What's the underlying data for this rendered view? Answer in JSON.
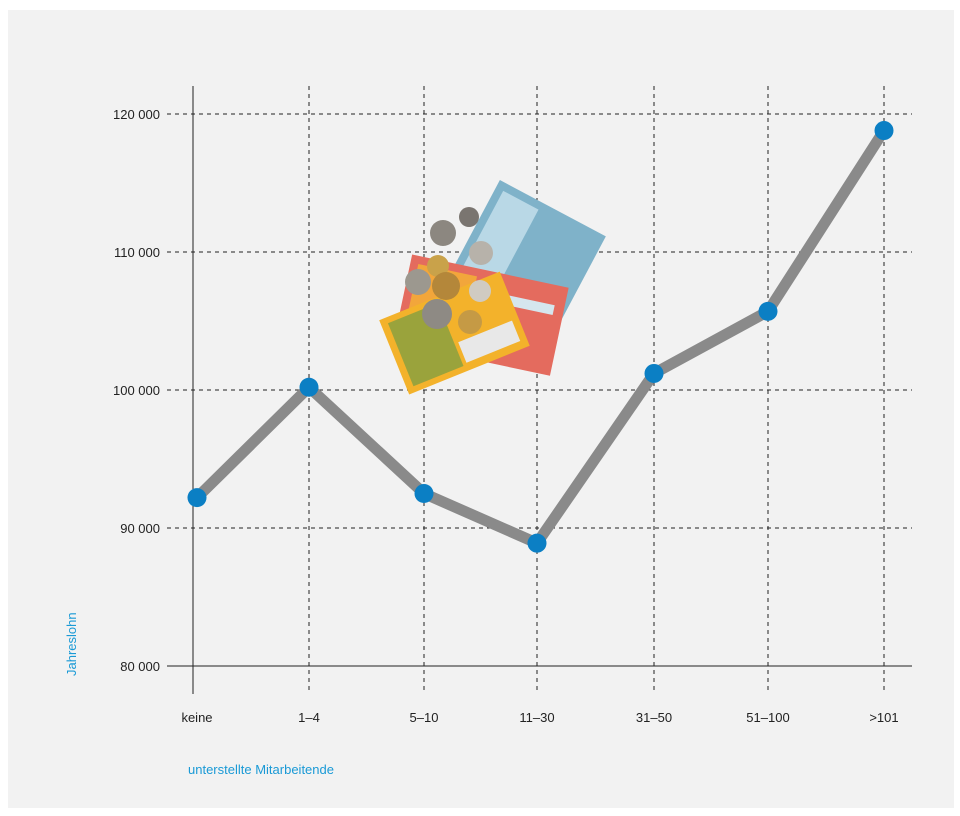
{
  "chart_data": {
    "type": "line",
    "categories": [
      "keine",
      "1–4",
      "5–10",
      "11–30",
      "31–50",
      "51–100",
      ">101"
    ],
    "series": [
      {
        "values": [
          92200,
          100200,
          92500,
          88900,
          101200,
          105700,
          118800
        ]
      }
    ],
    "xlabel": "unterstellte Mitarbeitende",
    "ylabel": "Jahreslohn",
    "ylim": [
      80000,
      120000
    ],
    "yticks": [
      80000,
      90000,
      100000,
      110000,
      120000
    ],
    "ytick_labels": [
      "80 000",
      "90 000",
      "100 000",
      "110 000",
      "120 000"
    ],
    "grid": true,
    "colors": {
      "line": "#8a8a8a",
      "marker": "#0b7fc4",
      "label": "#1a9ad6"
    }
  }
}
